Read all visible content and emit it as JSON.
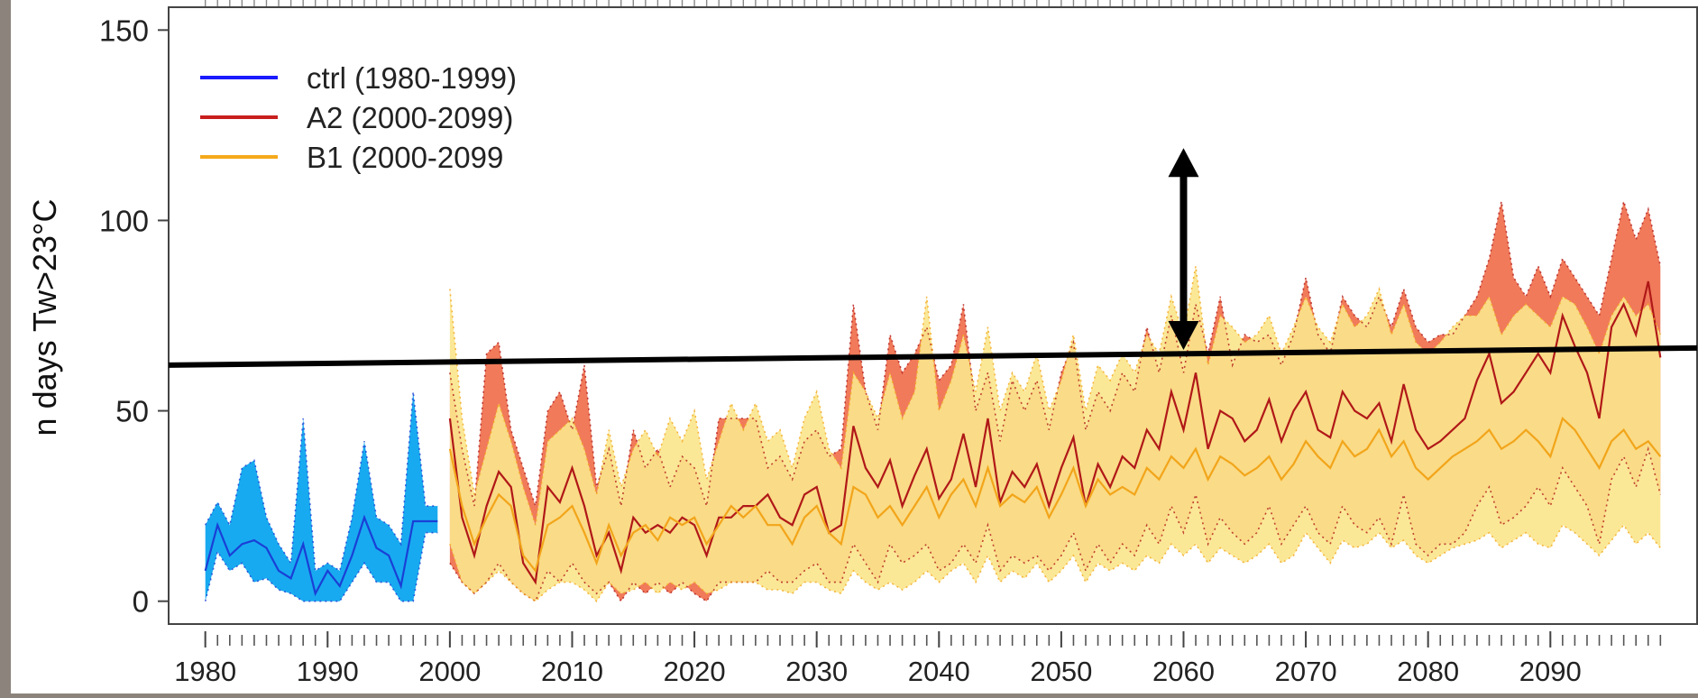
{
  "chart_data": {
    "type": "line",
    "ylabel": "n days Tw>23°C",
    "xlabel": "",
    "xlim": [
      1977,
      2102
    ],
    "ylim": [
      -6,
      156
    ],
    "xticks": [
      1980,
      1990,
      2000,
      2010,
      2020,
      2030,
      2040,
      2050,
      2060,
      2070,
      2080,
      2090
    ],
    "yticks": [
      0,
      50,
      100,
      150
    ],
    "legend": {
      "position": "top-left",
      "entries": [
        {
          "label": "ctrl (1980-1999)",
          "color": "#1a1aff"
        },
        {
          "label": "A2 (2000-2099)",
          "color": "#c81e1e"
        },
        {
          "label": "B1 (2000-2099",
          "color": "#f5a91a"
        }
      ]
    },
    "colors": {
      "ctrl_band": "#18aaf0",
      "ctrl_line": "#1a3fd6",
      "a2_band": "#f07a5a",
      "a2_line": "#b01818",
      "b1_band": "#fbe68c",
      "b1_line": "#f2a51a",
      "reference_line": "#000000"
    },
    "series": [
      {
        "name": "ctrl (1980-1999)",
        "x": [
          1980,
          1981,
          1982,
          1983,
          1984,
          1985,
          1986,
          1987,
          1988,
          1989,
          1990,
          1991,
          1992,
          1993,
          1994,
          1995,
          1996,
          1997,
          1998,
          1999
        ],
        "mean": [
          8,
          20,
          12,
          15,
          16,
          14,
          8,
          6,
          15,
          2,
          8,
          4,
          12,
          22,
          14,
          12,
          4,
          21,
          21,
          21
        ],
        "upper": [
          20,
          26,
          20,
          35,
          37,
          22,
          15,
          10,
          48,
          8,
          10,
          8,
          22,
          42,
          22,
          20,
          15,
          55,
          25,
          25
        ],
        "lower": [
          0,
          13,
          8,
          10,
          5,
          6,
          3,
          2,
          0,
          0,
          0,
          0,
          5,
          10,
          5,
          5,
          0,
          0,
          18,
          18
        ]
      },
      {
        "name": "A2 (2000-2099)",
        "x": [
          2000,
          2001,
          2002,
          2003,
          2004,
          2005,
          2006,
          2007,
          2008,
          2009,
          2010,
          2011,
          2012,
          2013,
          2014,
          2015,
          2016,
          2017,
          2018,
          2019,
          2020,
          2021,
          2022,
          2023,
          2024,
          2025,
          2026,
          2027,
          2028,
          2029,
          2030,
          2031,
          2032,
          2033,
          2034,
          2035,
          2036,
          2037,
          2038,
          2039,
          2040,
          2041,
          2042,
          2043,
          2044,
          2045,
          2046,
          2047,
          2048,
          2049,
          2050,
          2051,
          2052,
          2053,
          2054,
          2055,
          2056,
          2057,
          2058,
          2059,
          2060,
          2061,
          2062,
          2063,
          2064,
          2065,
          2066,
          2067,
          2068,
          2069,
          2070,
          2071,
          2072,
          2073,
          2074,
          2075,
          2076,
          2077,
          2078,
          2079,
          2080,
          2081,
          2082,
          2083,
          2084,
          2085,
          2086,
          2087,
          2088,
          2089,
          2090,
          2091,
          2092,
          2093,
          2094,
          2095,
          2096,
          2097,
          2098,
          2099
        ],
        "mean": [
          48,
          22,
          12,
          25,
          34,
          30,
          10,
          5,
          30,
          26,
          35,
          25,
          12,
          18,
          8,
          22,
          18,
          20,
          18,
          22,
          20,
          12,
          22,
          22,
          25,
          25,
          28,
          22,
          20,
          28,
          30,
          18,
          20,
          46,
          35,
          30,
          37,
          25,
          33,
          40,
          27,
          32,
          44,
          30,
          48,
          26,
          34,
          30,
          36,
          25,
          35,
          43,
          25,
          36,
          30,
          38,
          35,
          45,
          40,
          55,
          45,
          60,
          40,
          50,
          48,
          42,
          45,
          53,
          42,
          50,
          55,
          45,
          43,
          55,
          50,
          48,
          52,
          42,
          57,
          45,
          40,
          42,
          45,
          48,
          58,
          65,
          52,
          55,
          60,
          65,
          60,
          75,
          67,
          60,
          48,
          72,
          78,
          70,
          84,
          64
        ],
        "upper": [
          60,
          40,
          25,
          65,
          68,
          45,
          35,
          25,
          50,
          55,
          45,
          62,
          30,
          40,
          25,
          45,
          35,
          40,
          30,
          38,
          35,
          25,
          48,
          48,
          48,
          48,
          35,
          38,
          32,
          42,
          45,
          38,
          40,
          78,
          55,
          45,
          70,
          60,
          65,
          72,
          58,
          62,
          78,
          50,
          60,
          42,
          58,
          50,
          58,
          45,
          60,
          68,
          45,
          55,
          50,
          60,
          55,
          72,
          60,
          75,
          60,
          78,
          65,
          80,
          62,
          70,
          68,
          70,
          62,
          70,
          85,
          70,
          65,
          80,
          75,
          72,
          80,
          72,
          82,
          72,
          68,
          70,
          70,
          75,
          80,
          90,
          105,
          85,
          80,
          88,
          80,
          90,
          85,
          80,
          75,
          90,
          105,
          95,
          103,
          88
        ],
        "lower": [
          10,
          5,
          2,
          5,
          10,
          5,
          2,
          0,
          8,
          5,
          10,
          5,
          2,
          5,
          0,
          5,
          2,
          5,
          2,
          5,
          2,
          0,
          5,
          5,
          5,
          5,
          8,
          5,
          5,
          8,
          10,
          5,
          5,
          15,
          10,
          5,
          15,
          10,
          12,
          15,
          8,
          10,
          15,
          10,
          20,
          8,
          12,
          10,
          12,
          8,
          12,
          18,
          8,
          15,
          10,
          15,
          12,
          20,
          15,
          25,
          18,
          28,
          15,
          22,
          18,
          15,
          18,
          25,
          15,
          20,
          25,
          18,
          15,
          25,
          20,
          18,
          22,
          15,
          28,
          15,
          12,
          15,
          15,
          18,
          25,
          30,
          20,
          22,
          25,
          30,
          25,
          35,
          30,
          25,
          15,
          32,
          38,
          30,
          40,
          28
        ]
      },
      {
        "name": "B1 (2000-2099",
        "x": [
          2000,
          2001,
          2002,
          2003,
          2004,
          2005,
          2006,
          2007,
          2008,
          2009,
          2010,
          2011,
          2012,
          2013,
          2014,
          2015,
          2016,
          2017,
          2018,
          2019,
          2020,
          2021,
          2022,
          2023,
          2024,
          2025,
          2026,
          2027,
          2028,
          2029,
          2030,
          2031,
          2032,
          2033,
          2034,
          2035,
          2036,
          2037,
          2038,
          2039,
          2040,
          2041,
          2042,
          2043,
          2044,
          2045,
          2046,
          2047,
          2048,
          2049,
          2050,
          2051,
          2052,
          2053,
          2054,
          2055,
          2056,
          2057,
          2058,
          2059,
          2060,
          2061,
          2062,
          2063,
          2064,
          2065,
          2066,
          2067,
          2068,
          2069,
          2070,
          2071,
          2072,
          2073,
          2074,
          2075,
          2076,
          2077,
          2078,
          2079,
          2080,
          2081,
          2082,
          2083,
          2084,
          2085,
          2086,
          2087,
          2088,
          2089,
          2090,
          2091,
          2092,
          2093,
          2094,
          2095,
          2096,
          2097,
          2098,
          2099
        ],
        "mean": [
          40,
          25,
          15,
          22,
          28,
          25,
          12,
          8,
          20,
          22,
          25,
          18,
          10,
          20,
          12,
          18,
          20,
          16,
          22,
          20,
          22,
          15,
          20,
          25,
          22,
          25,
          20,
          20,
          15,
          22,
          25,
          18,
          15,
          30,
          28,
          22,
          25,
          20,
          25,
          30,
          22,
          28,
          32,
          25,
          35,
          25,
          28,
          26,
          30,
          22,
          28,
          35,
          25,
          32,
          28,
          30,
          28,
          35,
          32,
          38,
          35,
          40,
          32,
          38,
          36,
          33,
          35,
          38,
          32,
          36,
          42,
          38,
          35,
          42,
          38,
          40,
          45,
          38,
          42,
          35,
          32,
          35,
          38,
          40,
          42,
          45,
          40,
          42,
          45,
          42,
          38,
          48,
          45,
          40,
          35,
          42,
          45,
          40,
          42,
          38
        ],
        "upper": [
          82,
          48,
          28,
          40,
          52,
          42,
          30,
          20,
          42,
          45,
          48,
          40,
          28,
          45,
          30,
          40,
          45,
          38,
          48,
          42,
          50,
          32,
          42,
          52,
          45,
          52,
          42,
          45,
          35,
          48,
          55,
          40,
          35,
          60,
          55,
          48,
          60,
          48,
          55,
          80,
          50,
          58,
          70,
          55,
          72,
          50,
          60,
          55,
          65,
          50,
          58,
          70,
          50,
          62,
          58,
          65,
          60,
          70,
          65,
          80,
          70,
          88,
          62,
          75,
          72,
          68,
          70,
          75,
          65,
          72,
          80,
          72,
          68,
          78,
          72,
          75,
          82,
          70,
          78,
          68,
          65,
          68,
          72,
          75,
          75,
          80,
          70,
          75,
          78,
          75,
          72,
          80,
          78,
          72,
          65,
          75,
          80,
          75,
          78,
          70
        ],
        "lower": [
          15,
          5,
          2,
          5,
          8,
          5,
          2,
          0,
          3,
          5,
          5,
          3,
          0,
          5,
          2,
          3,
          5,
          2,
          5,
          3,
          5,
          2,
          3,
          5,
          5,
          5,
          3,
          3,
          2,
          5,
          5,
          3,
          2,
          8,
          5,
          3,
          5,
          3,
          5,
          8,
          5,
          8,
          10,
          5,
          12,
          5,
          8,
          6,
          10,
          5,
          8,
          12,
          5,
          10,
          8,
          10,
          8,
          12,
          10,
          15,
          12,
          15,
          10,
          14,
          12,
          10,
          12,
          15,
          10,
          12,
          18,
          14,
          10,
          16,
          14,
          15,
          18,
          14,
          16,
          12,
          10,
          12,
          14,
          15,
          16,
          18,
          14,
          16,
          18,
          15,
          14,
          20,
          18,
          15,
          12,
          16,
          20,
          15,
          18,
          14
        ]
      }
    ],
    "annotations": [
      {
        "type": "reference-line",
        "x": [
          1977,
          2102
        ],
        "y": [
          62,
          66.5
        ]
      },
      {
        "type": "double-arrow",
        "x": 2060,
        "y": [
          119,
          66
        ]
      }
    ]
  }
}
